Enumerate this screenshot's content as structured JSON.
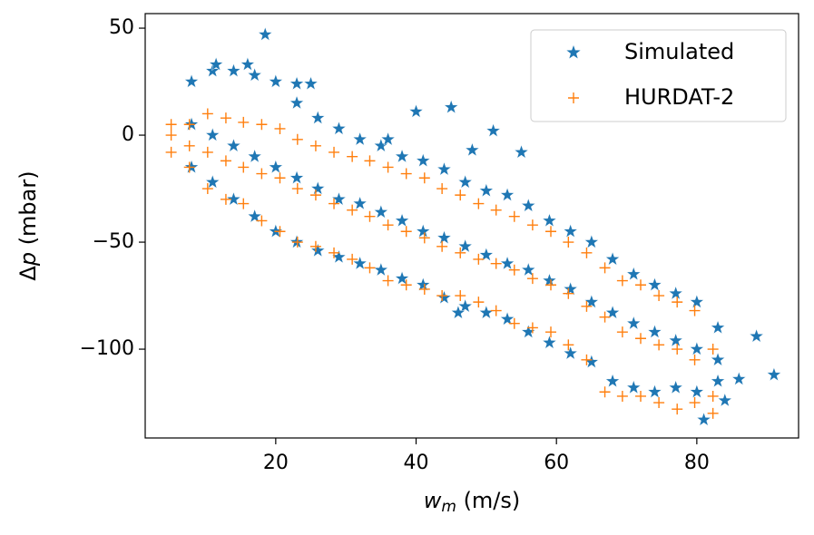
{
  "chart_data": {
    "type": "scatter",
    "xlabel": [
      "w",
      "m",
      " (m/s)"
    ],
    "ylabel": [
      "Δ",
      "p",
      " (mbar)"
    ],
    "xlim": [
      1.4,
      94.5
    ],
    "ylim": [
      -141.5,
      56.8
    ],
    "xticks": [
      20,
      40,
      60,
      80
    ],
    "yticks": [
      {
        "value": -100,
        "label": "−100"
      },
      {
        "value": -50,
        "label": "−50"
      },
      0,
      50
    ],
    "legend": "upper right",
    "series": [
      {
        "name": "Simulated",
        "color": "#1f77b4",
        "marker": "star",
        "x": [
          8,
          8,
          8,
          11,
          11,
          11,
          14,
          14,
          14,
          17,
          17,
          17,
          20,
          20,
          20,
          23,
          23,
          23,
          26,
          26,
          26,
          29,
          29,
          29,
          32,
          32,
          32,
          35,
          35,
          35,
          38,
          38,
          38,
          41,
          41,
          41,
          44,
          44,
          44,
          47,
          47,
          47,
          50,
          50,
          50,
          53,
          53,
          53,
          56,
          56,
          56,
          59,
          59,
          59,
          62,
          62,
          62,
          65,
          65,
          65,
          68,
          68,
          68,
          71,
          71,
          71,
          74,
          74,
          74,
          77,
          77,
          77,
          80,
          80,
          80,
          83,
          83,
          83,
          18.5,
          11.5,
          16,
          23,
          25,
          40,
          45,
          51,
          55,
          48,
          36,
          88.5,
          91,
          86,
          81,
          84,
          46
        ],
        "y": [
          25,
          5,
          -15,
          30,
          0,
          -22,
          30,
          -5,
          -30,
          28,
          -10,
          -38,
          25,
          -15,
          -45,
          15,
          -20,
          -50,
          8,
          -25,
          -54,
          3,
          -30,
          -57,
          -2,
          -32,
          -60,
          -5,
          -36,
          -63,
          -10,
          -40,
          -67,
          -12,
          -45,
          -70,
          -16,
          -48,
          -76,
          -22,
          -52,
          -80,
          -26,
          -56,
          -83,
          -28,
          -60,
          -86,
          -33,
          -63,
          -92,
          -40,
          -68,
          -97,
          -45,
          -72,
          -102,
          -50,
          -78,
          -106,
          -58,
          -83,
          -115,
          -65,
          -88,
          -118,
          -70,
          -92,
          -120,
          -74,
          -96,
          -118,
          -78,
          -100,
          -120,
          -90,
          -105,
          -115,
          47,
          33,
          33,
          24,
          24,
          11,
          13,
          2,
          -8,
          -7,
          -2,
          -94,
          -112,
          -114,
          -133,
          -124,
          -83
        ]
      },
      {
        "name": "HURDAT-2",
        "color": "#ff7f0e",
        "marker": "plus",
        "x": [
          5.1,
          5.1,
          5.1,
          7.7,
          7.7,
          7.7,
          10.3,
          10.3,
          10.3,
          12.9,
          12.9,
          12.9,
          15.4,
          15.4,
          15.4,
          18,
          18,
          18,
          20.6,
          20.6,
          20.6,
          23.1,
          23.1,
          23.1,
          25.7,
          25.7,
          25.7,
          28.3,
          28.3,
          28.3,
          30.9,
          30.9,
          30.9,
          33.4,
          33.4,
          33.4,
          36,
          36,
          36,
          38.6,
          38.6,
          38.6,
          41.2,
          41.2,
          41.2,
          43.7,
          43.7,
          43.7,
          46.3,
          46.3,
          46.3,
          48.9,
          48.9,
          48.9,
          51.4,
          51.4,
          51.4,
          54,
          54,
          54,
          56.6,
          56.6,
          56.6,
          59.2,
          59.2,
          59.2,
          61.7,
          61.7,
          61.7,
          64.3,
          64.3,
          64.3,
          66.9,
          66.9,
          66.9,
          69.4,
          69.4,
          69.4,
          72,
          72,
          72,
          74.6,
          74.6,
          74.6,
          77.2,
          77.2,
          77.2,
          79.7,
          79.7,
          79.7,
          82.3,
          82.3,
          82.3
        ],
        "y": [
          5,
          0,
          -8,
          5,
          -5,
          -15,
          10,
          -8,
          -25,
          8,
          -12,
          -30,
          6,
          -15,
          -32,
          5,
          -18,
          -40,
          3,
          -20,
          -45,
          -2,
          -25,
          -50,
          -5,
          -28,
          -52,
          -8,
          -32,
          -55,
          -10,
          -35,
          -58,
          -12,
          -38,
          -62,
          -15,
          -42,
          -68,
          -18,
          -45,
          -70,
          -20,
          -48,
          -72,
          -25,
          -52,
          -75,
          -28,
          -55,
          -75,
          -32,
          -58,
          -78,
          -35,
          -60,
          -82,
          -38,
          -63,
          -88,
          -42,
          -67,
          -90,
          -45,
          -70,
          -92,
          -50,
          -74,
          -98,
          -55,
          -80,
          -105,
          -62,
          -85,
          -120,
          -68,
          -92,
          -122,
          -70,
          -95,
          -122,
          -75,
          -98,
          -125,
          -78,
          -100,
          -128,
          -82,
          -105,
          -125,
          -100,
          -122,
          -130
        ]
      }
    ]
  }
}
